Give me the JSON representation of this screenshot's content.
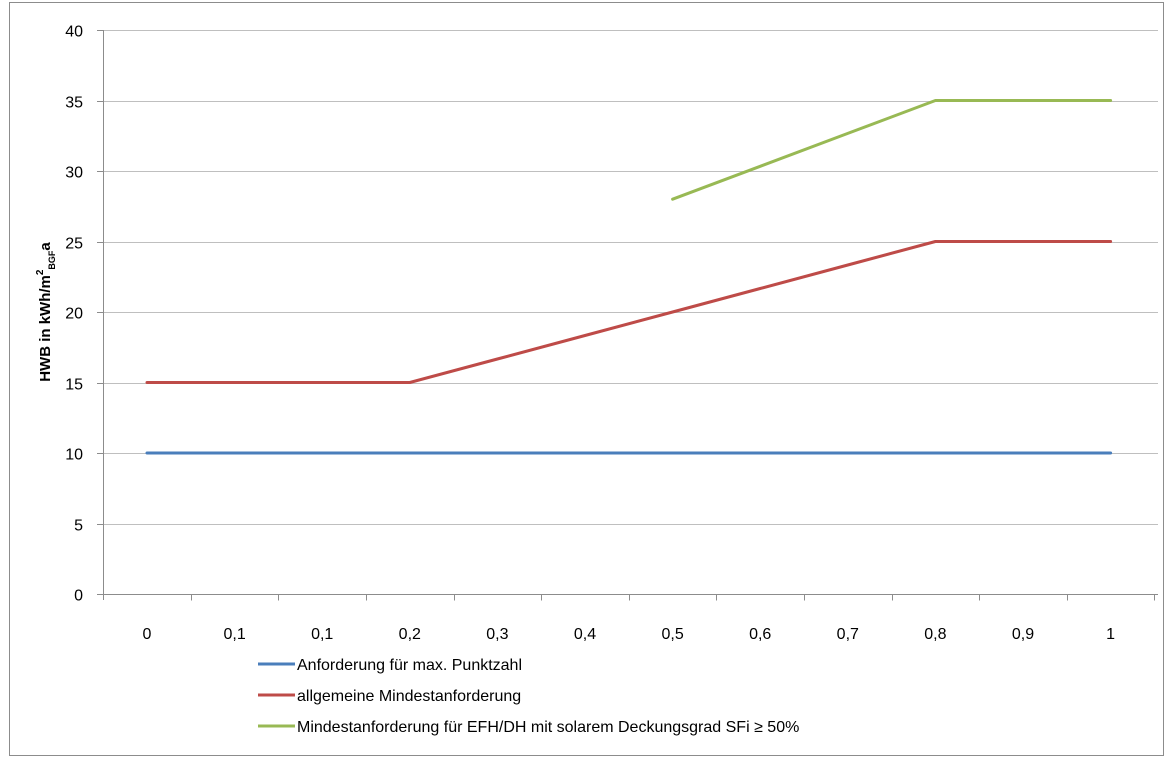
{
  "chart_data": {
    "type": "line",
    "categories": [
      "0",
      "0,1",
      "0,1",
      "0,2",
      "0,3",
      "0,4",
      "0,5",
      "0,6",
      "0,7",
      "0,8",
      "0,9",
      "1"
    ],
    "ylabel": {
      "main": "HWB in kWh/m",
      "sup": "2",
      "sub": "BGF",
      "tail": "a"
    },
    "ylim": [
      0,
      40
    ],
    "yticks": [
      0,
      5,
      10,
      15,
      20,
      25,
      30,
      35,
      40
    ],
    "grid": "horizontal",
    "legend_position": "bottom",
    "series": [
      {
        "name": "Anforderung für max. Punktzahl",
        "color": "#4a7ebb",
        "values": [
          10,
          10,
          10,
          10,
          10,
          10,
          10,
          10,
          10,
          10,
          10,
          10
        ]
      },
      {
        "name": "allgemeine Mindestanforderung",
        "color": "#be4b48",
        "values": [
          15,
          15,
          15,
          15,
          16.67,
          18.33,
          20,
          21.67,
          23.33,
          25,
          25,
          25
        ]
      },
      {
        "name": "Mindestanforderung für EFH/DH mit solarem Deckungsgrad SFi ≥ 50%",
        "color": "#98b954",
        "values": [
          null,
          null,
          null,
          null,
          null,
          null,
          28,
          30.33,
          32.67,
          35,
          35,
          35
        ]
      }
    ]
  }
}
